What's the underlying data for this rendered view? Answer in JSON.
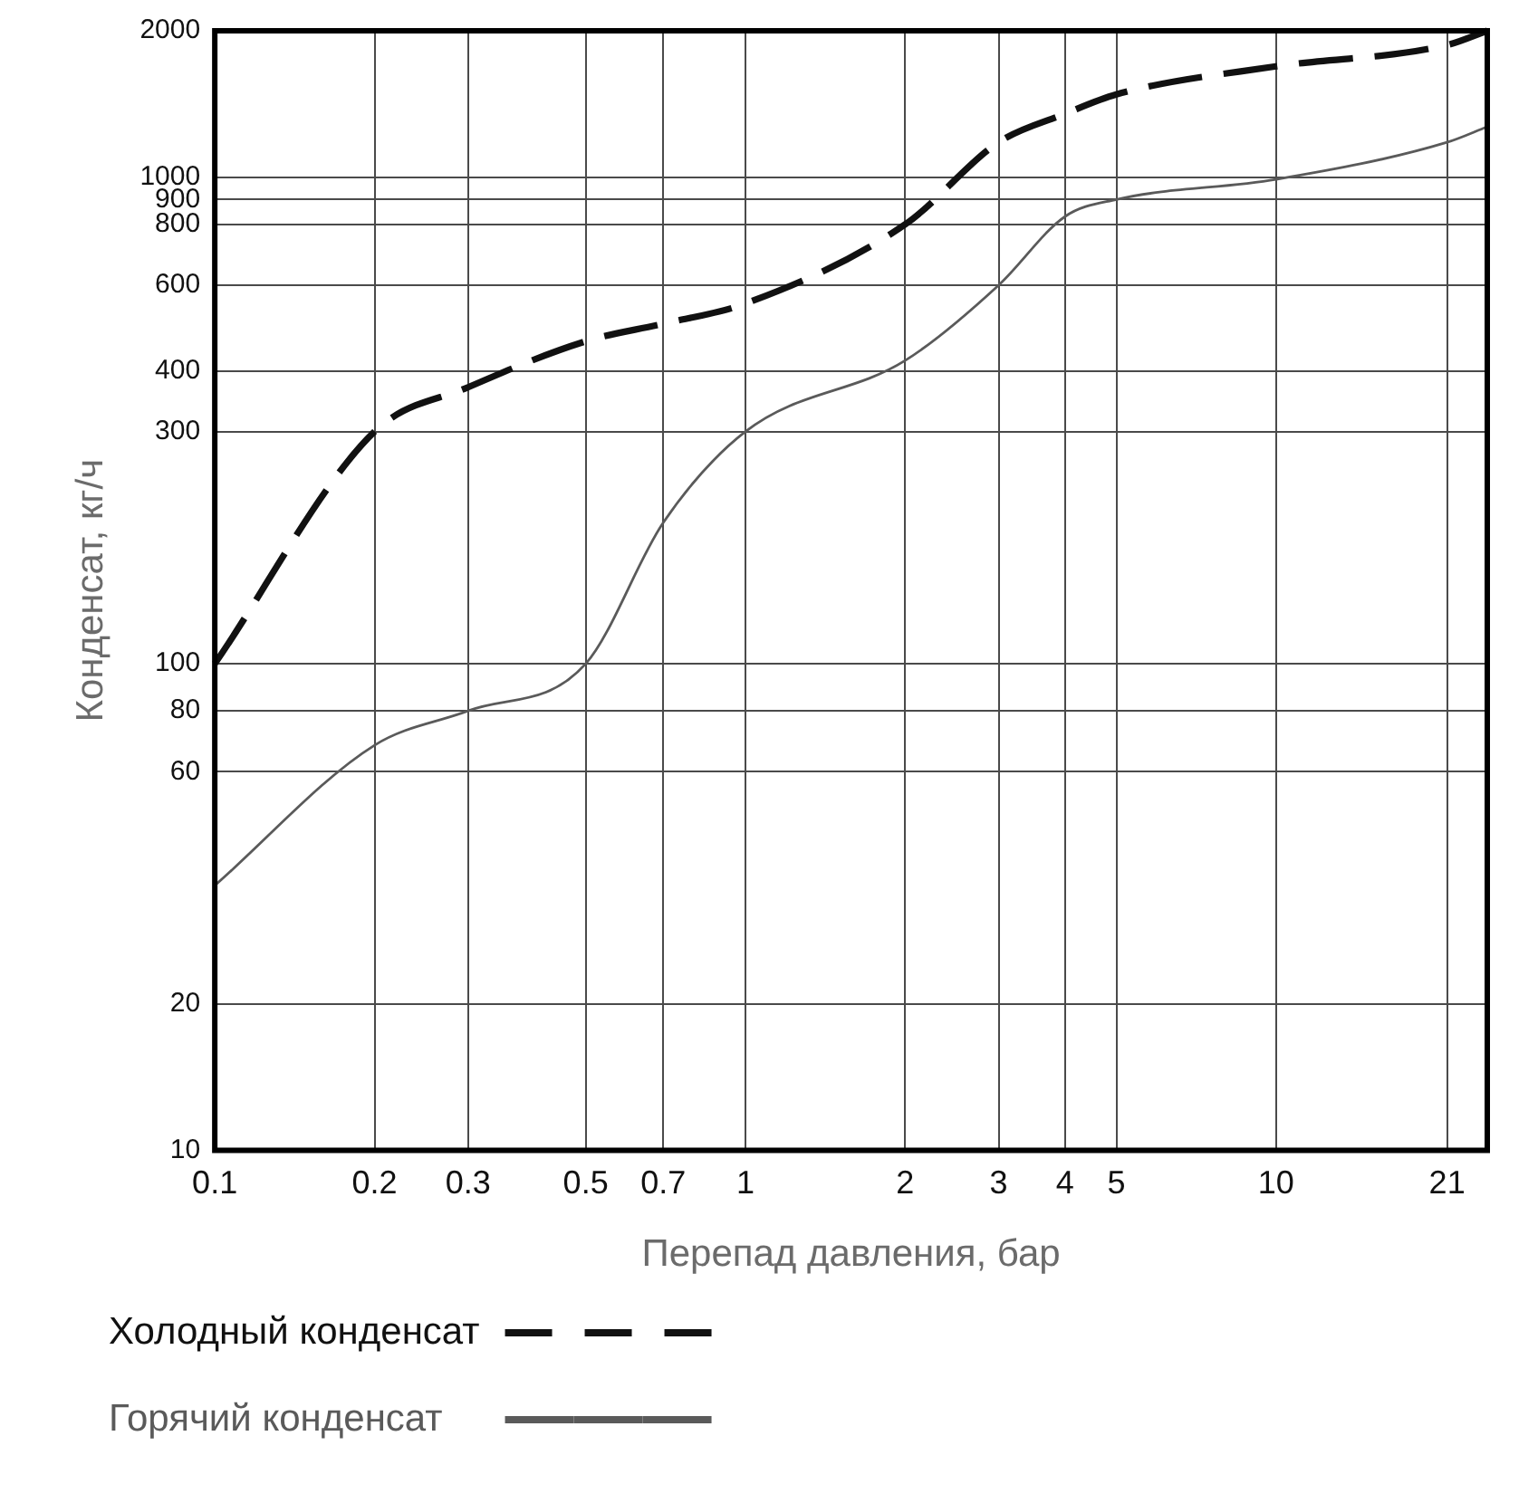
{
  "chart_data": {
    "type": "line",
    "xlabel": "Перепад давления, бар",
    "ylabel": "Конденсат, кг/ч",
    "x": [
      0.1,
      0.2,
      0.3,
      0.5,
      0.7,
      1,
      2,
      3,
      4,
      5,
      10,
      21,
      25
    ],
    "series": [
      {
        "name": "Холодный конденсат",
        "color": "#111111",
        "line_style": "dashed",
        "values": [
          100,
          300,
          370,
          460,
          500,
          550,
          800,
          1180,
          1350,
          1480,
          1690,
          1870,
          2000
        ]
      },
      {
        "name": "Горячий конденсат",
        "color": "#5a5a5a",
        "line_style": "solid",
        "values": [
          35,
          68,
          80,
          100,
          195,
          300,
          420,
          600,
          830,
          900,
          990,
          1180,
          1270
        ]
      }
    ],
    "xlim": [
      0.1,
      25
    ],
    "ylim": [
      10,
      2000
    ],
    "xticks": [
      0.1,
      0.2,
      0.3,
      0.5,
      0.7,
      1,
      2,
      3,
      4,
      5,
      10,
      21
    ],
    "yticks": [
      10,
      20,
      60,
      80,
      100,
      300,
      400,
      600,
      800,
      900,
      1000,
      2000
    ],
    "log": "xy",
    "grid": true,
    "legend": "bottom left"
  }
}
